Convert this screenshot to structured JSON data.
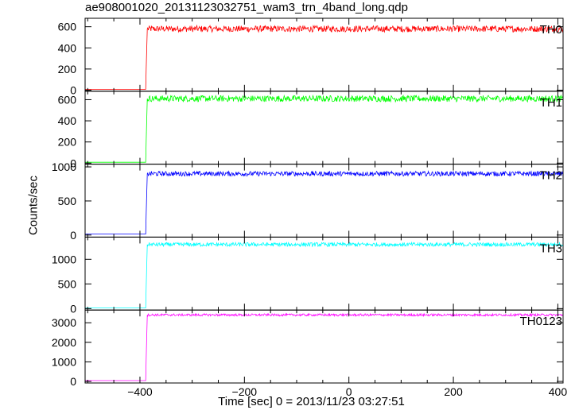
{
  "chart_data": {
    "type": "line",
    "title": "ae908001020_20131123032751_wam3_trn_4band_long.qdp",
    "xlabel": "Time [sec] 0 = 2013/11/23 03:27:51",
    "ylabel": "Counts/sec",
    "xlim": [
      -505,
      410
    ],
    "xticks": [
      -400,
      -200,
      0,
      200,
      400
    ],
    "xtick_labels": [
      "−400",
      "−200",
      "0",
      "200",
      "400"
    ],
    "grid": false,
    "step_time": -388,
    "panels": [
      {
        "name": "TH0",
        "color": "#ff0000",
        "ylim": [
          -10,
          680
        ],
        "yticks": [
          0,
          200,
          400,
          600
        ],
        "pre_level": 8,
        "post_level": 580,
        "noise": 30
      },
      {
        "name": "TH1",
        "color": "#00ff00",
        "ylim": [
          -10,
          680
        ],
        "yticks": [
          0,
          200,
          400,
          600
        ],
        "pre_level": 8,
        "post_level": 610,
        "noise": 30
      },
      {
        "name": "TH2",
        "color": "#0000ff",
        "ylim": [
          -30,
          1040
        ],
        "yticks": [
          0,
          500,
          1000
        ],
        "pre_level": 15,
        "post_level": 900,
        "noise": 35
      },
      {
        "name": "TH3",
        "color": "#00ffff",
        "ylim": [
          -30,
          1450
        ],
        "yticks": [
          0,
          500,
          1000
        ],
        "pre_level": 12,
        "post_level": 1300,
        "noise": 40
      },
      {
        "name": "TH0123",
        "color": "#ff00ff",
        "ylim": [
          -80,
          3650
        ],
        "yticks": [
          0,
          1000,
          2000,
          3000
        ],
        "pre_level": 40,
        "post_level": 3400,
        "noise": 60
      }
    ]
  }
}
